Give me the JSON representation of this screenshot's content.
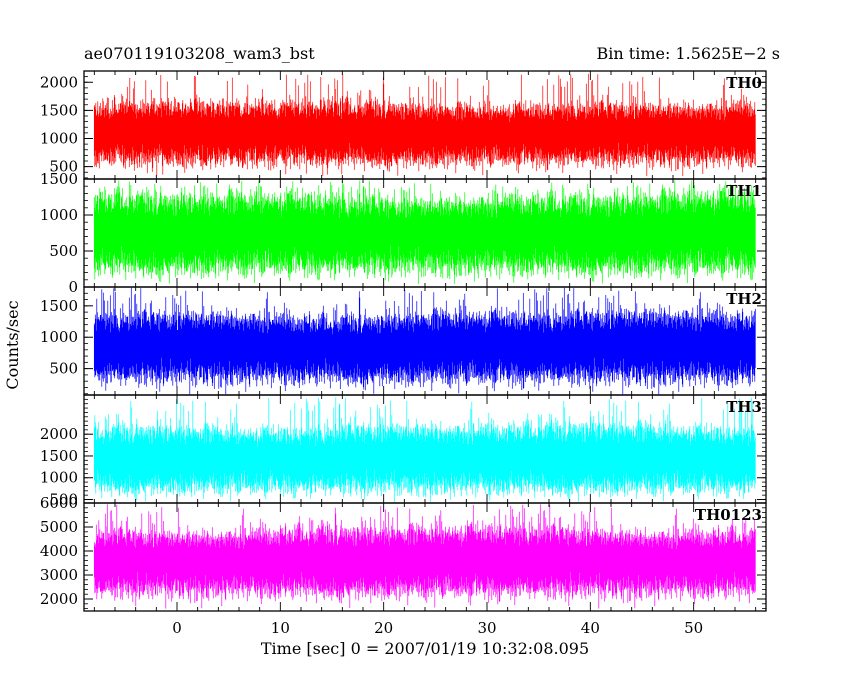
{
  "header": {
    "left": "ae070119103208_wam3_bst",
    "right": "Bin time: 1.5625E−2 s"
  },
  "chart_data": {
    "type": "line",
    "xlabel": "Time [sec] 0 = 2007/01/19 10:32:08.095",
    "ylabel": "Counts/sec",
    "xlim": [
      -9,
      57
    ],
    "data_x_range": [
      -8,
      56
    ],
    "x_ticks": [
      0,
      10,
      20,
      30,
      40,
      50
    ],
    "bin_time_s": 0.015625,
    "panels": [
      {
        "name": "TH0",
        "color": "#ff0000",
        "ylim": [
          280,
          2200
        ],
        "yticks": [
          500,
          1000,
          1500,
          2000
        ],
        "mean": 1050,
        "band": [
          620,
          1480
        ],
        "max": 2150,
        "min": 330
      },
      {
        "name": "TH1",
        "color": "#00ff00",
        "ylim": [
          0,
          1500
        ],
        "yticks": [
          0,
          500,
          1000,
          1500
        ],
        "mean": 700,
        "band": [
          300,
          1150
        ],
        "max": 1480,
        "min": 40
      },
      {
        "name": "TH2",
        "color": "#0000ff",
        "ylim": [
          80,
          1800
        ],
        "yticks": [
          500,
          1000,
          1500
        ],
        "mean": 800,
        "band": [
          380,
          1250
        ],
        "max": 1790,
        "min": 90
      },
      {
        "name": "TH3",
        "color": "#00ffff",
        "ylim": [
          420,
          2900
        ],
        "yticks": [
          500,
          1000,
          1500,
          2000
        ],
        "mean": 1380,
        "band": [
          800,
          2000
        ],
        "max": 2850,
        "min": 440
      },
      {
        "name": "TH0123",
        "color": "#ff00ff",
        "ylim": [
          1500,
          6000
        ],
        "yticks": [
          2000,
          3000,
          4000,
          5000,
          6000
        ],
        "mean": 3450,
        "band": [
          2400,
          4600
        ],
        "max": 5950,
        "min": 1600
      }
    ]
  }
}
